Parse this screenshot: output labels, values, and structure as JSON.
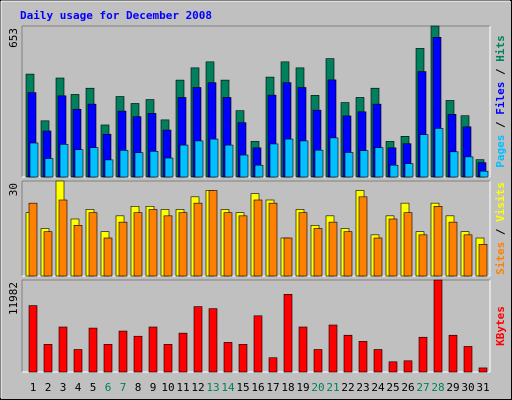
{
  "chart_data": [
    {
      "type": "bar",
      "title": "Daily usage for December 2008",
      "ylim": [
        0,
        653
      ],
      "yticks": [
        653
      ],
      "legend_separator": " / ",
      "series": [
        {
          "name": "Hits",
          "color": "#00805c",
          "values": [
            445,
            243,
            428,
            357,
            384,
            225,
            348,
            318,
            335,
            247,
            419,
            472,
            498,
            419,
            287,
            154,
            432,
            498,
            472,
            353,
            512,
            322,
            344,
            384,
            154,
            176,
            556,
            653,
            331,
            265,
            75
          ]
        },
        {
          "name": "Files",
          "color": "#0000ff",
          "values": [
            365,
            199,
            351,
            293,
            315,
            185,
            285,
            261,
            275,
            203,
            344,
            387,
            408,
            344,
            235,
            126,
            354,
            408,
            387,
            289,
            420,
            264,
            282,
            315,
            126,
            144,
            456,
            604,
            271,
            217,
            62
          ]
        },
        {
          "name": "Pages",
          "color": "#00c0ff",
          "values": [
            147,
            80,
            141,
            118,
            127,
            74,
            115,
            105,
            111,
            82,
            138,
            156,
            164,
            138,
            95,
            51,
            143,
            164,
            156,
            116,
            169,
            106,
            114,
            127,
            51,
            58,
            183,
            210,
            109,
            87,
            25
          ]
        }
      ]
    },
    {
      "type": "bar",
      "ylim": [
        0,
        30
      ],
      "yticks": [
        30
      ],
      "legend_separator": " / ",
      "series": [
        {
          "name": "Visits",
          "color": "#ffff00",
          "values": [
            20,
            15,
            30,
            18,
            21,
            14,
            19,
            22,
            22,
            21,
            21,
            25,
            27,
            21,
            20,
            26,
            24,
            12,
            21,
            16,
            19,
            15,
            27,
            13,
            19,
            23,
            14,
            23,
            19,
            14,
            12
          ]
        },
        {
          "name": "Sites",
          "color": "#ff8000",
          "values": [
            23,
            14,
            24,
            16,
            20,
            12,
            17,
            20,
            21,
            19,
            20,
            23,
            27,
            20,
            19,
            24,
            23,
            12,
            20,
            15,
            17,
            14,
            25,
            12,
            18,
            20,
            13,
            22,
            17,
            13,
            10
          ]
        }
      ]
    },
    {
      "type": "bar",
      "ylim": [
        0,
        11982
      ],
      "yticks": [
        11982
      ],
      "categories": [
        "1",
        "2",
        "3",
        "4",
        "5",
        "6",
        "7",
        "8",
        "9",
        "10",
        "11",
        "12",
        "13",
        "14",
        "15",
        "16",
        "17",
        "18",
        "19",
        "20",
        "21",
        "22",
        "23",
        "24",
        "25",
        "26",
        "27",
        "28",
        "29",
        "30",
        "31"
      ],
      "category_colors": [
        "#000000",
        "#000000",
        "#000000",
        "#000000",
        "#000000",
        "#00805c",
        "#00805c",
        "#000000",
        "#000000",
        "#000000",
        "#000000",
        "#000000",
        "#00805c",
        "#00805c",
        "#000000",
        "#000000",
        "#000000",
        "#000000",
        "#000000",
        "#00805c",
        "#00805c",
        "#000000",
        "#000000",
        "#000000",
        "#000000",
        "#000000",
        "#00805c",
        "#00805c",
        "#000000",
        "#000000",
        "#000000"
      ],
      "series": [
        {
          "name": "KBytes",
          "color": "#ff0000",
          "values": [
            8650,
            3600,
            5860,
            2930,
            5720,
            3600,
            5330,
            4660,
            5860,
            3600,
            5060,
            8520,
            8250,
            3860,
            3600,
            7320,
            1860,
            10120,
            5860,
            2930,
            6120,
            4790,
            3990,
            2930,
            1330,
            1460,
            4530,
            11982,
            4790,
            3330,
            530
          ]
        }
      ]
    }
  ]
}
